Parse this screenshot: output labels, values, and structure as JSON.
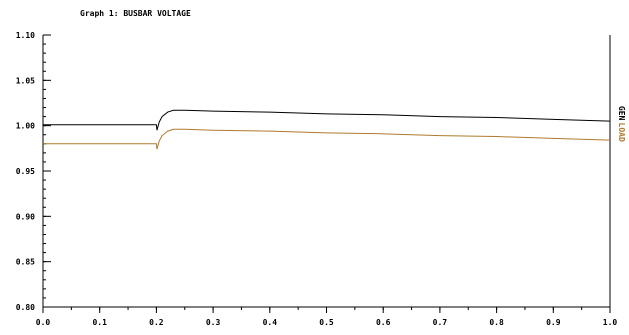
{
  "chart_data": {
    "type": "line",
    "title": "Graph  1: BUSBAR VOLTAGE",
    "xlabel": "",
    "ylabel": "",
    "xlim": [
      0.0,
      1.0
    ],
    "ylim": [
      0.8,
      1.1
    ],
    "x_ticks": [
      "0.0",
      "0.1",
      "0.2",
      "0.3",
      "0.4",
      "0.5",
      "0.6",
      "0.7",
      "0.8",
      "0.9",
      "1.0"
    ],
    "y_ticks": [
      "1.10",
      "1.05",
      "1.00",
      "0.95",
      "0.90",
      "0.85",
      "0.80"
    ],
    "x_minor_step": 0.05,
    "y_minor_step": 0.01,
    "grid": false,
    "legend_placement": "right, rotated labels at line ends",
    "series": [
      {
        "name": "GEN",
        "color": "#000000",
        "x": [
          0.0,
          0.2,
          0.201,
          0.205,
          0.21,
          0.22,
          0.23,
          0.25,
          0.3,
          0.4,
          0.5,
          0.6,
          0.7,
          0.8,
          0.9,
          1.0
        ],
        "y": [
          1.001,
          1.001,
          0.995,
          1.004,
          1.01,
          1.015,
          1.017,
          1.017,
          1.016,
          1.015,
          1.013,
          1.012,
          1.01,
          1.009,
          1.007,
          1.005
        ]
      },
      {
        "name": "LOAD",
        "color": "#b07a2e",
        "x": [
          0.0,
          0.2,
          0.201,
          0.205,
          0.21,
          0.22,
          0.23,
          0.25,
          0.3,
          0.4,
          0.5,
          0.6,
          0.7,
          0.8,
          0.9,
          1.0
        ],
        "y": [
          0.98,
          0.98,
          0.974,
          0.983,
          0.989,
          0.994,
          0.996,
          0.996,
          0.995,
          0.994,
          0.992,
          0.991,
          0.989,
          0.988,
          0.986,
          0.984
        ]
      }
    ]
  }
}
